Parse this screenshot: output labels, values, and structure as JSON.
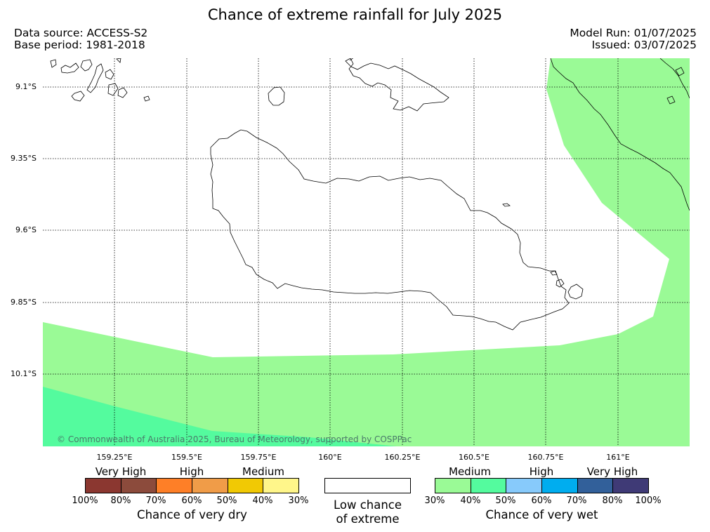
{
  "title": "Chance of extreme rainfall for July 2025",
  "meta": {
    "data_source": "Data source: ACCESS-S2",
    "base_period": "Base period: 1981-2018",
    "model_run": "Model Run: 01/07/2025",
    "issued": "Issued: 03/07/2025"
  },
  "map": {
    "lat_labels": [
      "9.1°S",
      "9.35°S",
      "9.6°S",
      "9.85°S",
      "10.1°S"
    ],
    "lon_labels": [
      "159.25°E",
      "159.5°E",
      "159.75°E",
      "160°E",
      "160.25°E",
      "160.5°E",
      "160.75°E",
      "161°E"
    ],
    "copyright": "© Commonwealth of Australia 2025, Bureau of Meteorology, supported by COSPPac",
    "shading_colors": {
      "medium_wet": "#9afa96",
      "medium_wet_high": "#54fb9e"
    }
  },
  "legend": {
    "dry": {
      "categories": [
        "Very High",
        "High",
        "Medium"
      ],
      "percentages": [
        "100%",
        "80%",
        "70%",
        "60%",
        "50%",
        "40%",
        "30%"
      ],
      "colors": [
        "#8b3730",
        "#8c4b3c",
        "#fe7f27",
        "#f09c48",
        "#f1c904",
        "#fff68a"
      ],
      "caption": "Chance of very dry"
    },
    "low": {
      "caption_line1": "Low chance",
      "caption_line2": "of extreme",
      "color": "#ffffff"
    },
    "wet": {
      "categories": [
        "Medium",
        "High",
        "Very High"
      ],
      "percentages": [
        "30%",
        "40%",
        "50%",
        "60%",
        "70%",
        "80%",
        "100%"
      ],
      "colors": [
        "#9afa96",
        "#54fb9e",
        "#87cafb",
        "#00adef",
        "#32609a",
        "#3f3a76"
      ],
      "caption": "Chance of very wet"
    }
  }
}
